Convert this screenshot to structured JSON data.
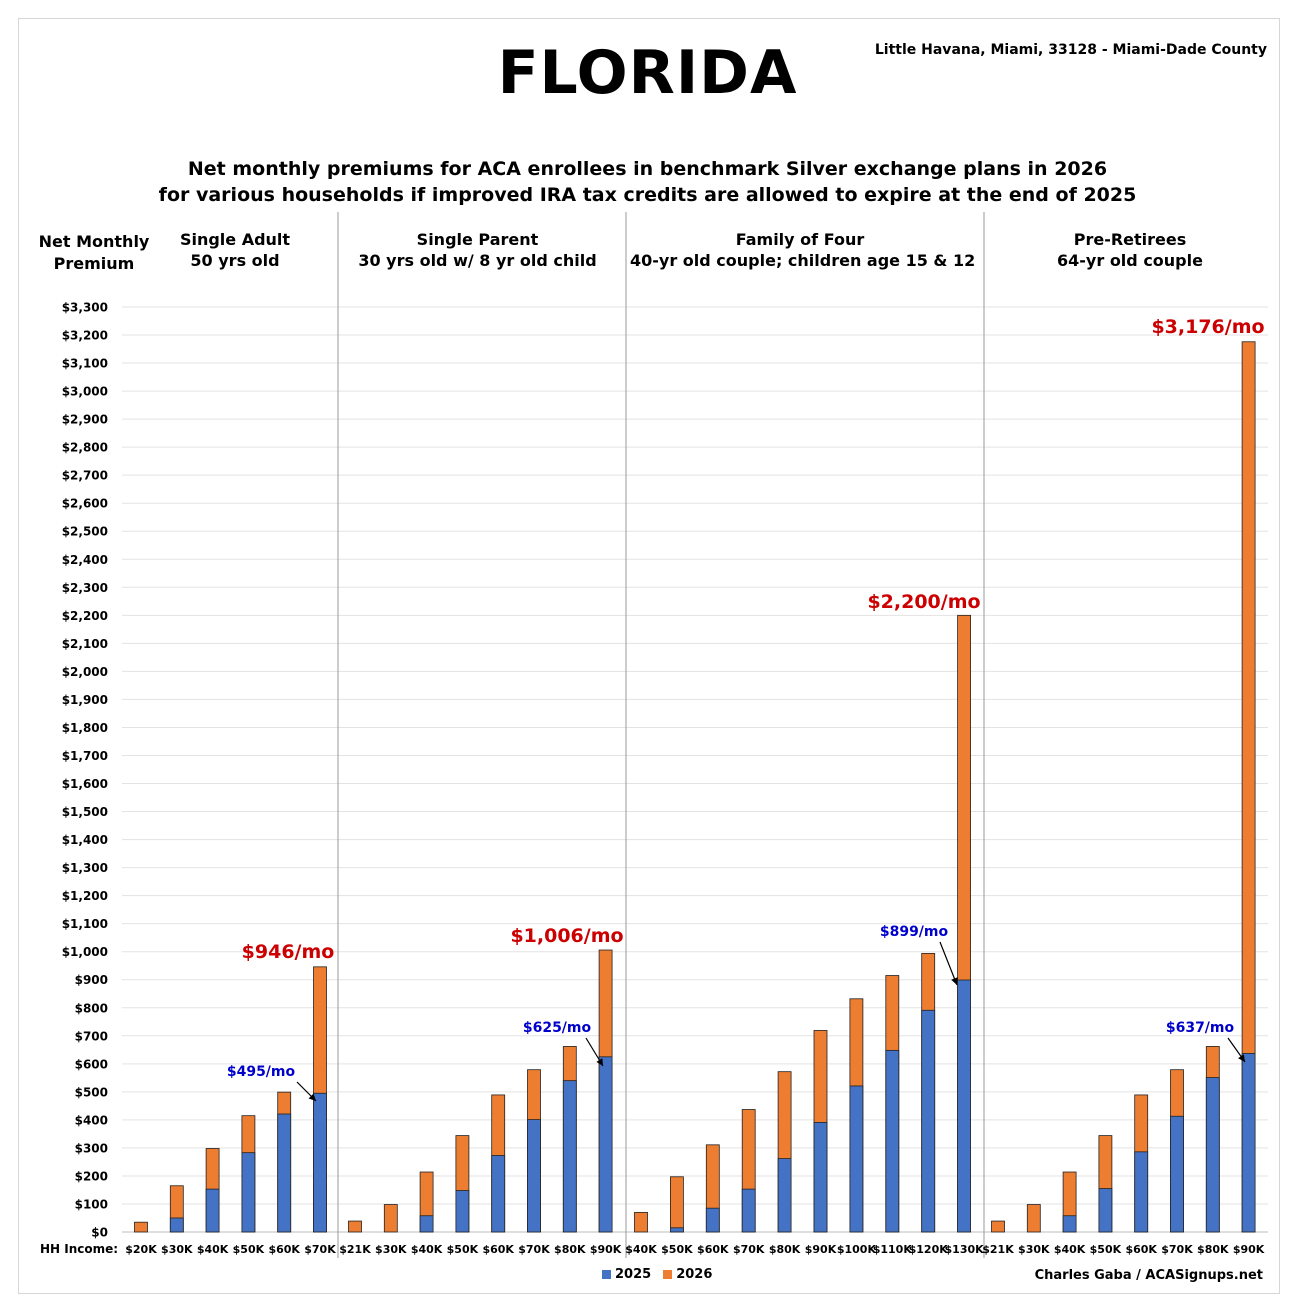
{
  "header": {
    "state": "FLORIDA",
    "location": "Little Havana, Miami, 33128 - Miami-Dade County",
    "subtitle_line1": "Net monthly premiums for ACA enrollees in benchmark Silver exchange plans in 2026",
    "subtitle_line2": "for various households if improved IRA tax credits are allowed to expire at the end of 2025",
    "ylabel_line1": "Net Monthly",
    "ylabel_line2": "Premium"
  },
  "footer": {
    "xaxis_label": "HH Income:",
    "credit": "Charles Gaba / ACASignups.net",
    "legend": [
      {
        "label": "2025",
        "color": "#4472C4"
      },
      {
        "label": "2026",
        "color": "#ED7D31"
      }
    ]
  },
  "colors": {
    "series_2025": "#4472C4",
    "series_2026": "#ED7D31",
    "callout_red": "#CC0000",
    "callout_blue": "#0000CC",
    "grid": "#e3e3e3",
    "divider": "#9a9a9a"
  },
  "chart_data": {
    "type": "bar",
    "stacked": true,
    "ylim": [
      0,
      3300
    ],
    "yticks": [
      "$0",
      "$100",
      "$200",
      "$300",
      "$400",
      "$500",
      "$600",
      "$700",
      "$800",
      "$900",
      "$1,000",
      "$1,100",
      "$1,200",
      "$1,300",
      "$1,400",
      "$1,500",
      "$1,600",
      "$1,700",
      "$1,800",
      "$1,900",
      "$2,000",
      "$2,100",
      "$2,200",
      "$2,300",
      "$2,400",
      "$2,500",
      "$2,600",
      "$2,700",
      "$2,800",
      "$2,900",
      "$3,000",
      "$3,100",
      "$3,200",
      "$3,300"
    ],
    "grid": true,
    "legend_position": "bottom-center",
    "series_names": [
      "2025",
      "2026"
    ],
    "panels": [
      {
        "title_line1": "Single Adult",
        "title_line2": "50 yrs old",
        "categories": [
          "$20K",
          "$30K",
          "$40K",
          "$50K",
          "$60K",
          "$70K"
        ],
        "values_2025": [
          0,
          50,
          153,
          283,
          421,
          495
        ],
        "values_2026": [
          35,
          165,
          298,
          415,
          499,
          946
        ],
        "callout_2026": "$946/mo",
        "callout_2025": "$495/mo"
      },
      {
        "title_line1": "Single Parent",
        "title_line2": "30 yrs old w/ 8 yr old child",
        "categories": [
          "$21K",
          "$30K",
          "$40K",
          "$50K",
          "$60K",
          "$70K",
          "$80K",
          "$90K"
        ],
        "values_2025": [
          0,
          0,
          58,
          148,
          273,
          401,
          540,
          625
        ],
        "values_2026": [
          39,
          98,
          214,
          344,
          489,
          579,
          662,
          1006
        ],
        "callout_2026": "$1,006/mo",
        "callout_2025": "$625/mo"
      },
      {
        "title_line1": "Family of Four",
        "title_line2": "40-yr old couple; children age 15 & 12",
        "categories": [
          "$40K",
          "$50K",
          "$60K",
          "$70K",
          "$80K",
          "$90K",
          "$100K",
          "$110K",
          "$120K",
          "$130K"
        ],
        "values_2025": [
          0,
          15,
          85,
          153,
          262,
          391,
          521,
          648,
          791,
          899
        ],
        "values_2026": [
          70,
          197,
          311,
          437,
          572,
          719,
          832,
          915,
          994,
          2200
        ],
        "callout_2026": "$2,200/mo",
        "callout_2025": "$899/mo"
      },
      {
        "title_line1": "Pre-Retirees",
        "title_line2": "64-yr old couple",
        "categories": [
          "$21K",
          "$30K",
          "$40K",
          "$50K",
          "$60K",
          "$70K",
          "$80K",
          "$90K"
        ],
        "values_2025": [
          0,
          0,
          58,
          155,
          286,
          413,
          551,
          637
        ],
        "values_2026": [
          39,
          98,
          214,
          344,
          489,
          579,
          662,
          3176
        ],
        "callout_2026": "$3,176/mo",
        "callout_2025": "$637/mo"
      }
    ]
  }
}
